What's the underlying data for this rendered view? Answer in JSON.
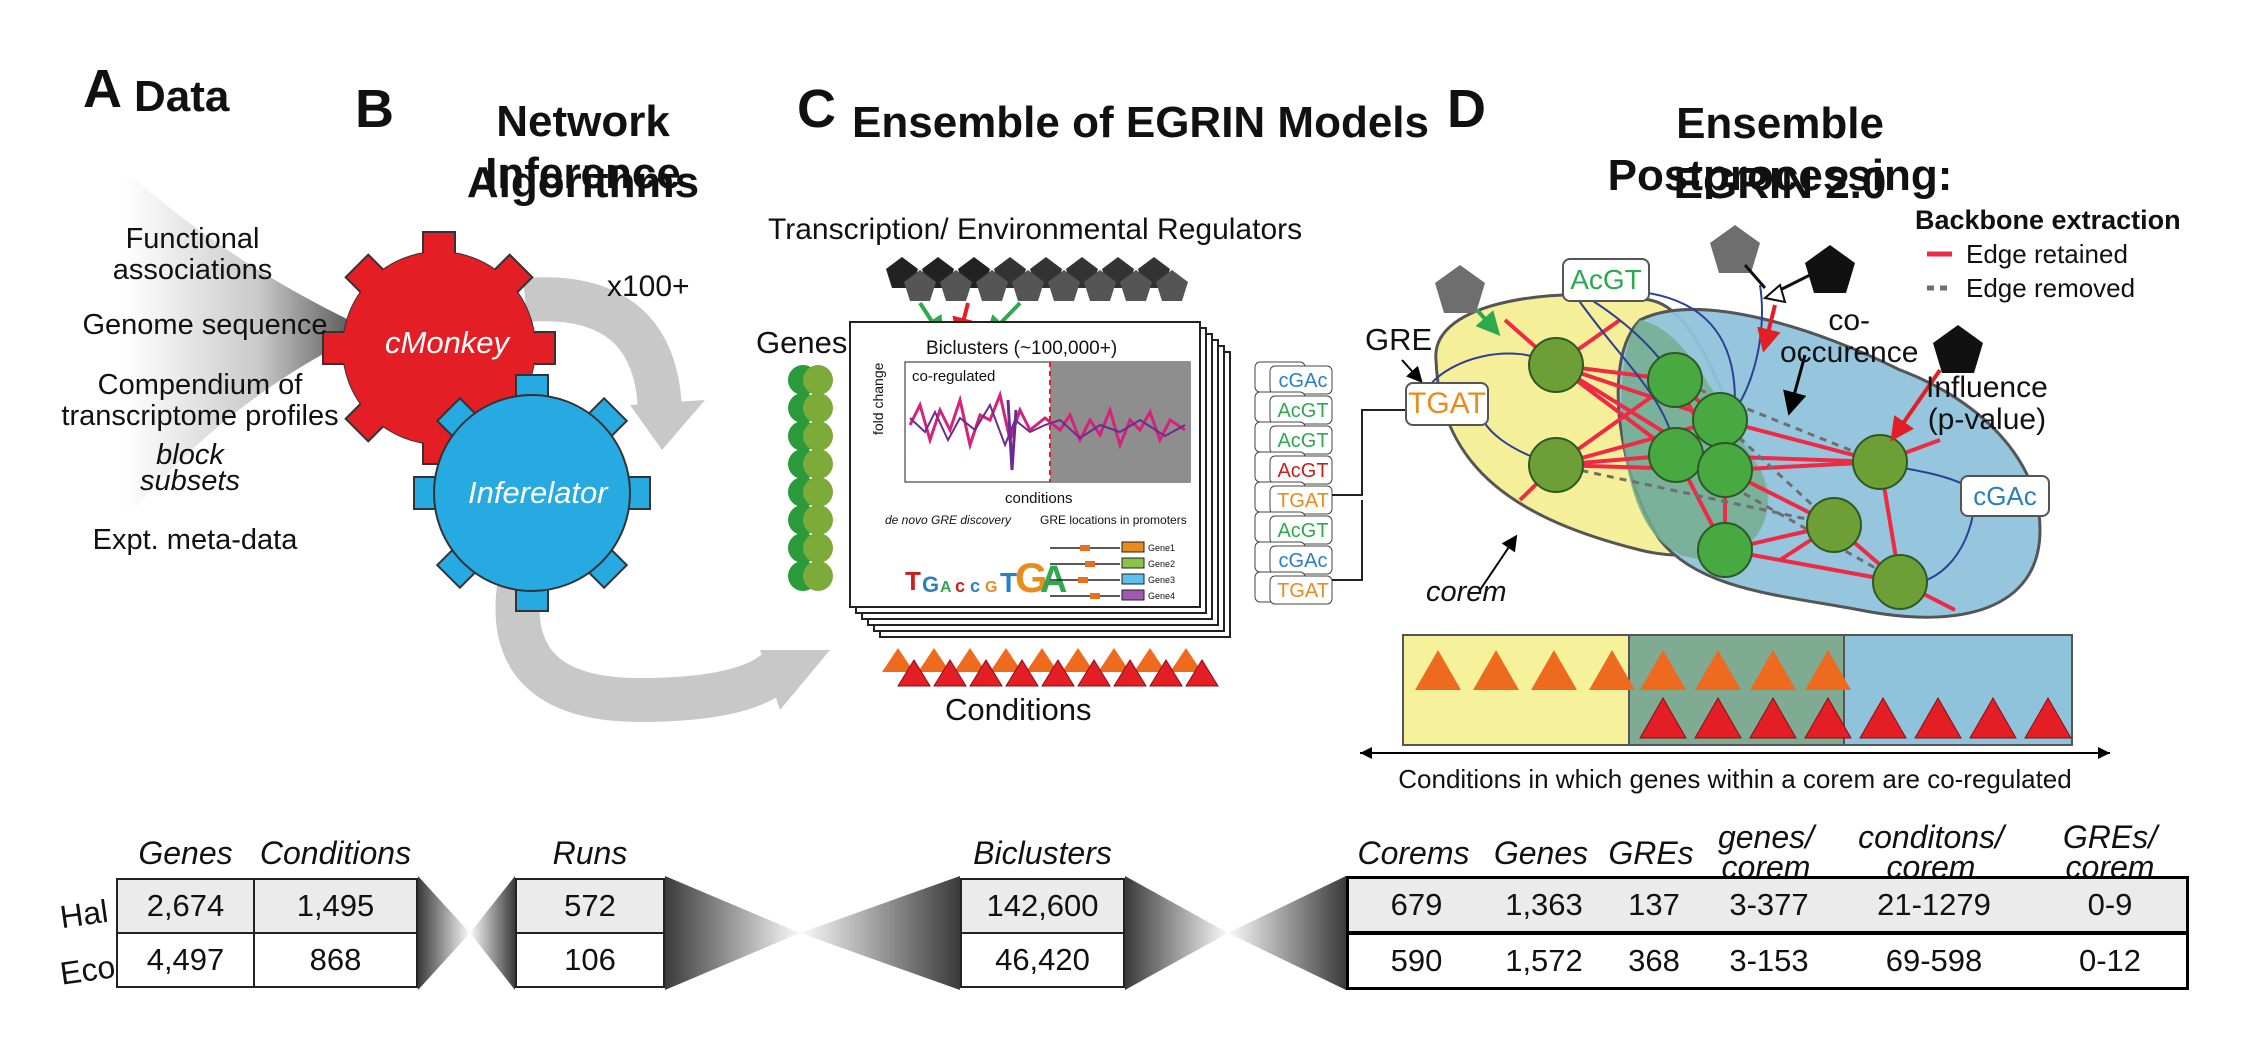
{
  "panel_a": {
    "letter": "A",
    "title": "Data",
    "sources": [
      "Functional associations",
      "Genome sequence",
      "Compendium of transcriptome profiles",
      "block",
      "subsets",
      "Expt. meta-data"
    ]
  },
  "panel_b": {
    "letter": "B",
    "title_line1": "Network Inference",
    "title_line2": "Algorithms",
    "cog1": "cMonkey",
    "cog2": "Inferelator",
    "repeat": "x100+"
  },
  "panel_c": {
    "letter": "C",
    "title": "Ensemble of EGRIN Models",
    "regulators": "Transcription/ Environmental Regulators",
    "genes": "Genes",
    "conditions": "Conditions",
    "biclusters": "Biclusters (~100,000+)",
    "coregulated": "co-regulated",
    "foldchange": "fold change",
    "conditions_axis": "conditions",
    "denovo": "de novo GRE discovery",
    "gre_loc": "GRE locations in promoters",
    "gene_labels": [
      "Gene1",
      "Gene2",
      "Gene3",
      "Gene4"
    ],
    "motifs": [
      "AcGT",
      "TGAT",
      "AcGT",
      "cGAc"
    ]
  },
  "panel_d": {
    "letter": "D",
    "title_line1": "Ensemble Postprocessing:",
    "title_line2": "EGRIN 2.0",
    "gre": "GRE",
    "gre_motif": "TGAT",
    "top_motif": "AcGT",
    "right_motif": "cGAc",
    "cooccurence": "co-\noccurence",
    "influence": "Influence\n(p-value)",
    "corem": "corem",
    "legend_title": "Backbone extraction",
    "legend_retained": "Edge retained",
    "legend_removed": "Edge removed",
    "conditions_caption": "Conditions in which genes within a corem are co-regulated"
  },
  "table": {
    "row_labels": [
      "Hal",
      "Eco"
    ],
    "g1": {
      "headers": [
        "Genes",
        "Conditions"
      ],
      "rows": [
        [
          "2,674",
          "1,495"
        ],
        [
          "4,497",
          "868"
        ]
      ]
    },
    "g2": {
      "headers": [
        "Runs"
      ],
      "rows": [
        [
          "572"
        ],
        [
          "106"
        ]
      ]
    },
    "g3": {
      "headers": [
        "Biclusters"
      ],
      "rows": [
        [
          "142,600"
        ],
        [
          "46,420"
        ]
      ]
    },
    "g4": {
      "headers": [
        "Corems",
        "Genes",
        "GREs",
        "genes/\ncorem",
        "conditons/\ncorem",
        "GREs/\ncorem"
      ],
      "rows": [
        [
          "679",
          "1,363",
          "137",
          "3-377",
          "21-1279",
          "0-9"
        ],
        [
          "590",
          "1,572",
          "368",
          "3-153",
          "69-598",
          "0-12"
        ]
      ]
    }
  },
  "colors": {
    "red": "#e31e24",
    "blue": "#27a9e1",
    "edge": "#ee2a45",
    "node": "#38a13a",
    "yellow": "#f6f29b",
    "lightblue": "#8fc3dc"
  }
}
